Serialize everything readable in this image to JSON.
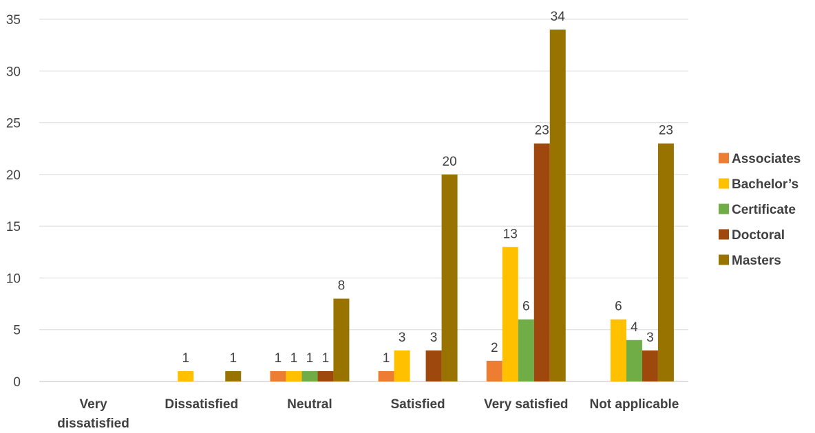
{
  "chart_data": {
    "type": "bar",
    "categories": [
      [
        "Very",
        "dissatisfied"
      ],
      [
        "Dissatisfied"
      ],
      [
        "Neutral"
      ],
      [
        "Satisfied"
      ],
      [
        "Very satisfied"
      ],
      [
        "Not applicable"
      ]
    ],
    "series": [
      {
        "name": "Associates",
        "color": "#ED7D31",
        "values": [
          null,
          null,
          1,
          1,
          2,
          null
        ]
      },
      {
        "name": "Bachelor’s",
        "color": "#FFC000",
        "values": [
          null,
          1,
          1,
          3,
          13,
          6
        ]
      },
      {
        "name": "Certificate",
        "color": "#70AD47",
        "values": [
          null,
          null,
          1,
          null,
          6,
          4
        ]
      },
      {
        "name": "Doctoral",
        "color": "#9E480E",
        "values": [
          null,
          null,
          1,
          3,
          23,
          3
        ]
      },
      {
        "name": "Masters",
        "color": "#997300",
        "values": [
          null,
          1,
          8,
          20,
          34,
          23
        ]
      }
    ],
    "ylim": [
      0,
      35
    ],
    "yticks": [
      0,
      5,
      10,
      15,
      20,
      25,
      30,
      35
    ],
    "grid": true,
    "data_labels": true,
    "legend_position": "right"
  }
}
